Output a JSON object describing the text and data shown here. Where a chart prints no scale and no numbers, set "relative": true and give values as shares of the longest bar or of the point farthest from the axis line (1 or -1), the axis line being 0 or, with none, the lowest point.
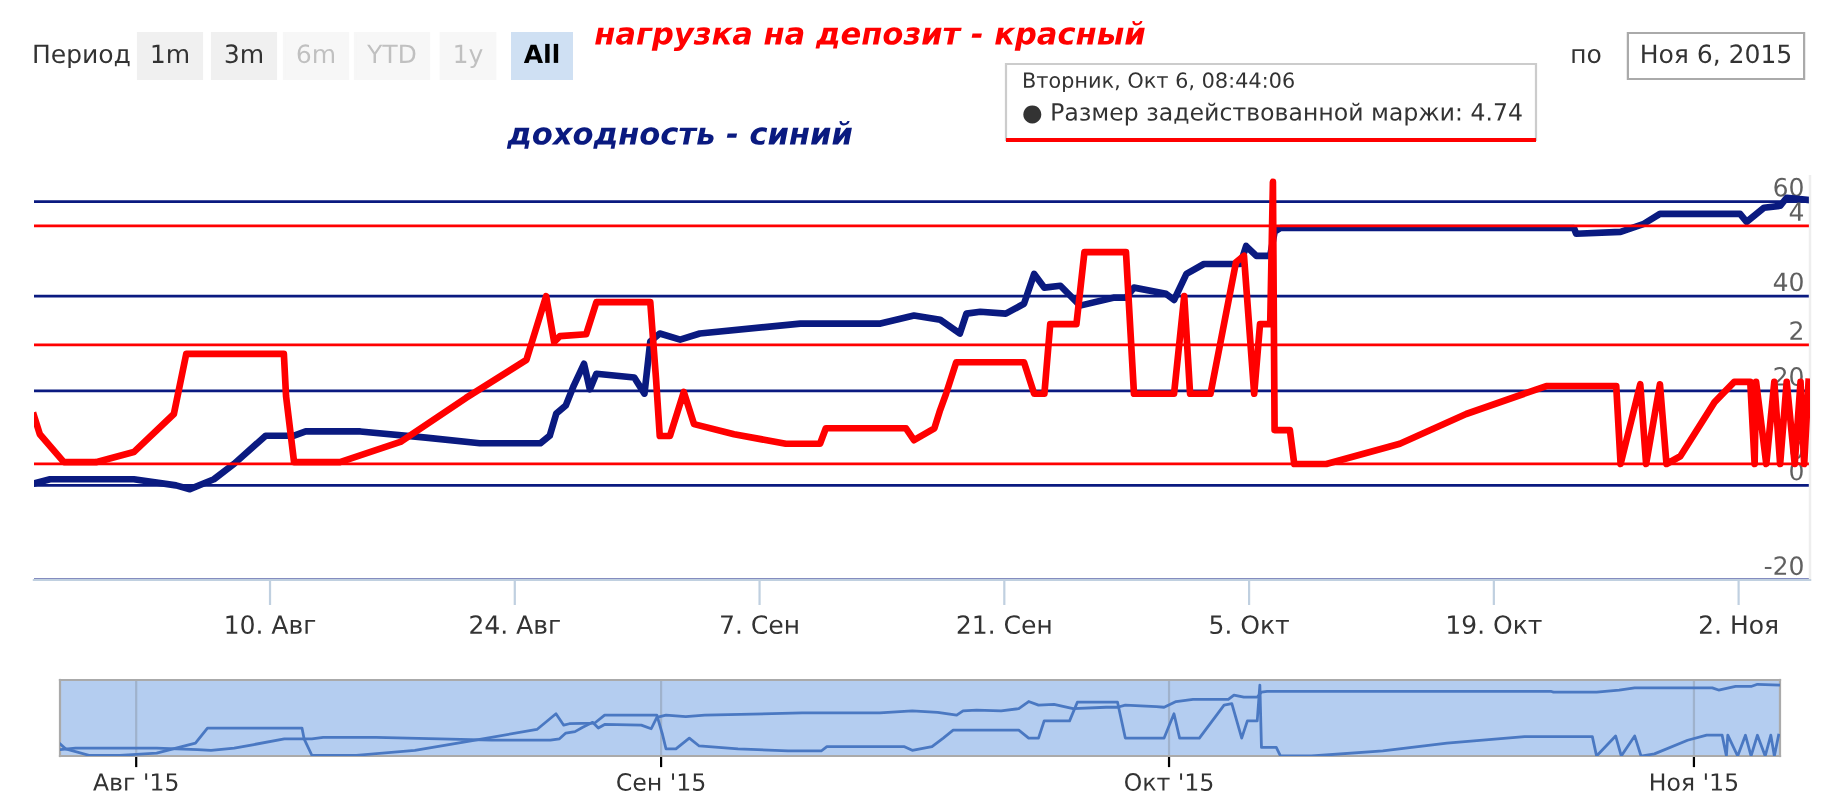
{
  "chart_data": [
    {
      "type": "line",
      "xlim": [
        "2015-07-27T12:00",
        "2015-11-06T02:00"
      ],
      "xticks": [
        {
          "value": "2015-08-10",
          "label": "10. Авг"
        },
        {
          "value": "2015-08-24",
          "label": "24. Авг"
        },
        {
          "value": "2015-09-07",
          "label": "7. Сен"
        },
        {
          "value": "2015-09-21",
          "label": "21. Сен"
        },
        {
          "value": "2015-10-05",
          "label": "5. Окт"
        },
        {
          "value": "2015-10-19",
          "label": "19. Окт"
        },
        {
          "value": "2015-11-02",
          "label": "2. Ноя"
        }
      ],
      "ylim": [
        -20,
        65.4
      ],
      "yticks": [
        -20,
        0,
        20,
        40,
        60
      ],
      "y2lim": [
        -1.95,
        4.84
      ],
      "y2ticks": [
        0,
        2,
        4
      ],
      "grid": "y",
      "legend": false,
      "annotations": [
        "Период",
        "1m",
        "3m",
        "6m",
        "YTD",
        "1y",
        "All",
        "по",
        "Ноя 6, 2015",
        "Вторник, Окт 6, 08:44:06",
        "● Размер задействованной маржи: 4.74"
      ],
      "series": [
        {
          "name": "доходность - синий",
          "color": "#0a1a80",
          "axis": "y",
          "x": [
            "2015-07-27T12:00",
            "2015-07-28T10:00",
            "2015-08-02T05:00",
            "2015-08-04T15:00",
            "2015-08-05T10:00",
            "2015-08-06T19:00",
            "2015-08-07T23:00",
            "2015-08-09T18:00",
            "2015-08-11T09:00",
            "2015-08-12T01:00",
            "2015-08-15T04:00",
            "2015-08-18T22:00",
            "2015-08-22T00:00",
            "2015-08-25T11:00",
            "2015-08-26T00:00",
            "2015-08-26T09:00",
            "2015-08-26T22:00",
            "2015-08-27T09:00",
            "2015-08-27T23:00",
            "2015-08-28T07:00",
            "2015-08-28T16:00",
            "2015-08-30T20:00",
            "2015-08-31T10:00",
            "2015-08-31T18:00",
            "2015-09-01T07:00",
            "2015-09-02T11:00",
            "2015-09-03T14:00",
            "2015-09-09T08:00",
            "2015-09-13T22:00",
            "2015-09-15T20:00",
            "2015-09-17T08:00",
            "2015-09-18T11:00",
            "2015-09-18T20:00",
            "2015-09-19T15:00",
            "2015-09-21T02:00",
            "2015-09-22T03:00",
            "2015-09-22T17:00",
            "2015-09-23T07:00",
            "2015-09-24T05:00",
            "2015-09-25T08:00",
            "2015-09-27T07:00",
            "2015-09-27T23:00",
            "2015-09-28T10:00",
            "2015-09-30T06:00",
            "2015-09-30T17:00",
            "2015-10-01T10:00",
            "2015-10-02T10:00",
            "2015-10-04T12:00",
            "2015-10-04T20:00",
            "2015-10-05T10:00",
            "2015-10-06T05:00",
            "2015-10-06T11:00",
            "2015-10-06T19:00",
            "2015-10-23T14:00",
            "2015-10-23T17:00",
            "2015-10-26T06:00",
            "2015-10-27T14:00",
            "2015-10-28T12:00",
            "2015-11-02T02:00",
            "2015-11-02T11:00",
            "2015-11-03T11:00",
            "2015-11-04T09:00",
            "2015-11-04T18:00",
            "2015-11-06T02:00"
          ],
          "values": [
            0.4,
            1.3,
            1.3,
            0,
            -0.8,
            1.3,
            4.6,
            10.5,
            10.5,
            11.4,
            11.4,
            10.1,
            8.9,
            8.9,
            10.5,
            15.2,
            16.9,
            21.1,
            25.7,
            20.3,
            23.6,
            22.8,
            19.4,
            30.4,
            32.1,
            30.8,
            32.1,
            34.2,
            34.2,
            35.9,
            35,
            32.1,
            36.3,
            36.7,
            36.3,
            38.4,
            44.7,
            41.8,
            42.2,
            38,
            39.7,
            39.7,
            41.8,
            40.5,
            39.2,
            44.7,
            46.8,
            46.8,
            50.6,
            48.5,
            48.5,
            53.6,
            54.4,
            54.4,
            53.2,
            53.6,
            55.3,
            57.4,
            57.4,
            55.7,
            58.7,
            59.1,
            60.8,
            60.3
          ]
        },
        {
          "name": "нагрузка на депозит - красный",
          "color": "#ff0000",
          "axis": "y2",
          "x": [
            "2015-07-27T12:00",
            "2015-07-27T20:00",
            "2015-07-29T05:00",
            "2015-07-31T01:00",
            "2015-08-02T05:00",
            "2015-08-04T12:00",
            "2015-08-05T05:00",
            "2015-08-10T19:00",
            "2015-08-10T22:00",
            "2015-08-11T09:00",
            "2015-08-14T00:00",
            "2015-08-17T11:00",
            "2015-08-21T05:00",
            "2015-08-24T16:00",
            "2015-08-25T19:00",
            "2015-08-26T06:00",
            "2015-08-26T14:00",
            "2015-08-28T02:00",
            "2015-08-28T16:00",
            "2015-08-31T18:00",
            "2015-09-01T02:00",
            "2015-09-01T07:00",
            "2015-09-01T21:00",
            "2015-09-02T16:00",
            "2015-09-03T06:00",
            "2015-09-05T13:00",
            "2015-09-08T12:00",
            "2015-09-10T11:00",
            "2015-09-10T19:00",
            "2015-09-15T09:00",
            "2015-09-15T20:00",
            "2015-09-17T00:00",
            "2015-09-17T08:00",
            "2015-09-17T16:00",
            "2015-09-18T06:00",
            "2015-09-22T03:00",
            "2015-09-22T17:00",
            "2015-09-23T07:00",
            "2015-09-23T15:00",
            "2015-09-25T03:00",
            "2015-09-25T14:00",
            "2015-09-27T23:00",
            "2015-09-28T10:00",
            "2015-09-30T17:00",
            "2015-10-01T07:00",
            "2015-10-01T15:00",
            "2015-10-02T19:00",
            "2015-10-04T06:00",
            "2015-10-04T17:00",
            "2015-10-05T07:00",
            "2015-10-05T15:00",
            "2015-10-06T05:00",
            "2015-10-06T08:44",
            "2015-10-06T11:00",
            "2015-10-07T08:00",
            "2015-10-07T14:00",
            "2015-10-09T10:00",
            "2015-10-13T15:00",
            "2015-10-17T10:00",
            "2015-10-22T00:00",
            "2015-10-26T00:00",
            "2015-10-26T06:00",
            "2015-10-27T09:00",
            "2015-10-27T17:00",
            "2015-10-28T12:00",
            "2015-10-28T21:00",
            "2015-10-29T16:00",
            "2015-10-31T15:00",
            "2015-11-01T18:00",
            "2015-11-02T16:00",
            "2015-11-02T22:00",
            "2015-11-03T00:00",
            "2015-11-03T14:00",
            "2015-11-04T01:00",
            "2015-11-04T09:00",
            "2015-11-04T18:00",
            "2015-11-05T05:00",
            "2015-11-05T13:00",
            "2015-11-05T18:00",
            "2015-11-06T00:00"
          ],
          "values": [
            0.81,
            0.5,
            0.03,
            0.03,
            0.2,
            0.84,
            1.85,
            1.85,
            1.14,
            0.03,
            0.03,
            0.37,
            1.11,
            1.75,
            2.82,
            2.05,
            2.15,
            2.18,
            2.72,
            2.72,
            1.41,
            0.47,
            0.47,
            1.21,
            0.67,
            0.5,
            0.34,
            0.34,
            0.6,
            0.6,
            0.4,
            0.6,
            0.91,
            1.18,
            1.71,
            1.71,
            1.18,
            1.18,
            2.35,
            2.35,
            3.56,
            3.56,
            1.18,
            1.18,
            2.82,
            1.18,
            1.18,
            3.39,
            3.5,
            1.18,
            2.35,
            2.35,
            4.74,
            0.57,
            0.57,
            0,
            0,
            0.34,
            0.84,
            1.31,
            1.31,
            0,
            1.34,
            0,
            1.34,
            0,
            0.13,
            1.04,
            1.38,
            1.38,
            0,
            1.38,
            0,
            1.38,
            0,
            1.38,
            0,
            1.38,
            0,
            1.38
          ]
        }
      ]
    },
    {
      "type": "line",
      "xlim": [
        "2015-07-27T12:00",
        "2015-11-06T02:00"
      ],
      "xticks": [
        {
          "value": "2015-08-01",
          "label": "Авг '15"
        },
        {
          "value": "2015-09-01",
          "label": "Сен '15"
        },
        {
          "value": "2015-10-01",
          "label": "Окт '15"
        },
        {
          "value": "2015-11-01",
          "label": "Ноя '15"
        }
      ],
      "relative": true,
      "grid": "x",
      "tick_labels": "x",
      "legend": false,
      "bands": [
        {
          "axis": "x",
          "from": "2015-07-27T12:00",
          "to": "2015-11-06T02:00",
          "color": "#b4cdf0"
        }
      ],
      "series": [
        {
          "color": "#4a78c2",
          "x": [
            "2015-07-27T12:00",
            "2015-07-28T10:00",
            "2015-08-02T05:00",
            "2015-08-04T15:00",
            "2015-08-05T10:00",
            "2015-08-06T19:00",
            "2015-08-07T23:00",
            "2015-08-09T18:00",
            "2015-08-11T09:00",
            "2015-08-12T01:00",
            "2015-08-15T04:00",
            "2015-08-18T22:00",
            "2015-08-22T00:00",
            "2015-08-25T11:00",
            "2015-08-26T00:00",
            "2015-08-26T09:00",
            "2015-08-26T22:00",
            "2015-08-27T09:00",
            "2015-08-27T23:00",
            "2015-08-28T07:00",
            "2015-08-28T16:00",
            "2015-08-30T20:00",
            "2015-08-31T10:00",
            "2015-08-31T18:00",
            "2015-09-01T07:00",
            "2015-09-02T11:00",
            "2015-09-03T14:00",
            "2015-09-09T08:00",
            "2015-09-13T22:00",
            "2015-09-15T20:00",
            "2015-09-17T08:00",
            "2015-09-18T11:00",
            "2015-09-18T20:00",
            "2015-09-19T15:00",
            "2015-09-21T02:00",
            "2015-09-22T03:00",
            "2015-09-22T17:00",
            "2015-09-23T07:00",
            "2015-09-24T05:00",
            "2015-09-25T08:00",
            "2015-09-27T07:00",
            "2015-09-27T23:00",
            "2015-09-28T10:00",
            "2015-09-30T06:00",
            "2015-09-30T17:00",
            "2015-10-01T10:00",
            "2015-10-02T10:00",
            "2015-10-04T12:00",
            "2015-10-04T20:00",
            "2015-10-05T10:00",
            "2015-10-06T05:00",
            "2015-10-06T11:00",
            "2015-10-06T19:00",
            "2015-10-23T14:00",
            "2015-10-23T17:00",
            "2015-10-26T06:00",
            "2015-10-27T14:00",
            "2015-10-28T12:00",
            "2015-11-02T02:00",
            "2015-11-02T11:00",
            "2015-11-03T11:00",
            "2015-11-04T09:00",
            "2015-11-04T18:00",
            "2015-11-06T02:00"
          ],
          "values": [
            0.09,
            0.11,
            0.11,
            0.09,
            0.08,
            0.11,
            0.16,
            0.24,
            0.24,
            0.26,
            0.26,
            0.24,
            0.22,
            0.22,
            0.24,
            0.32,
            0.34,
            0.4,
            0.47,
            0.39,
            0.44,
            0.43,
            0.38,
            0.54,
            0.57,
            0.55,
            0.57,
            0.6,
            0.6,
            0.63,
            0.61,
            0.57,
            0.63,
            0.64,
            0.63,
            0.66,
            0.76,
            0.71,
            0.72,
            0.66,
            0.68,
            0.68,
            0.71,
            0.69,
            0.68,
            0.76,
            0.79,
            0.79,
            0.85,
            0.82,
            0.82,
            0.89,
            0.9,
            0.9,
            0.89,
            0.89,
            0.92,
            0.95,
            0.95,
            0.92,
            0.97,
            0.97,
            1,
            0.99
          ]
        },
        {
          "color": "#4a78c2",
          "x": [
            "2015-07-27T12:00",
            "2015-07-27T20:00",
            "2015-07-29T05:00",
            "2015-07-31T01:00",
            "2015-08-02T05:00",
            "2015-08-04T12:00",
            "2015-08-05T05:00",
            "2015-08-10T19:00",
            "2015-08-10T22:00",
            "2015-08-11T09:00",
            "2015-08-14T00:00",
            "2015-08-17T11:00",
            "2015-08-21T05:00",
            "2015-08-24T16:00",
            "2015-08-25T19:00",
            "2015-08-26T06:00",
            "2015-08-26T14:00",
            "2015-08-28T02:00",
            "2015-08-28T16:00",
            "2015-08-31T18:00",
            "2015-09-01T02:00",
            "2015-09-01T07:00",
            "2015-09-01T21:00",
            "2015-09-02T16:00",
            "2015-09-03T06:00",
            "2015-09-05T13:00",
            "2015-09-08T12:00",
            "2015-09-10T11:00",
            "2015-09-10T19:00",
            "2015-09-15T09:00",
            "2015-09-15T20:00",
            "2015-09-17T00:00",
            "2015-09-17T08:00",
            "2015-09-17T16:00",
            "2015-09-18T06:00",
            "2015-09-22T03:00",
            "2015-09-22T17:00",
            "2015-09-23T07:00",
            "2015-09-23T15:00",
            "2015-09-25T03:00",
            "2015-09-25T14:00",
            "2015-09-27T23:00",
            "2015-09-28T10:00",
            "2015-09-30T17:00",
            "2015-10-01T07:00",
            "2015-10-01T15:00",
            "2015-10-02T19:00",
            "2015-10-04T06:00",
            "2015-10-04T17:00",
            "2015-10-05T07:00",
            "2015-10-05T15:00",
            "2015-10-06T05:00",
            "2015-10-06T08:44",
            "2015-10-06T11:00",
            "2015-10-07T08:00",
            "2015-10-07T14:00",
            "2015-10-09T10:00",
            "2015-10-13T15:00",
            "2015-10-17T10:00",
            "2015-10-22T00:00",
            "2015-10-26T00:00",
            "2015-10-26T06:00",
            "2015-10-27T09:00",
            "2015-10-27T17:00",
            "2015-10-28T12:00",
            "2015-10-28T21:00",
            "2015-10-29T16:00",
            "2015-10-31T15:00",
            "2015-11-01T18:00",
            "2015-11-02T16:00",
            "2015-11-02T22:00",
            "2015-11-03T00:00",
            "2015-11-03T14:00",
            "2015-11-04T01:00",
            "2015-11-04T09:00",
            "2015-11-04T18:00",
            "2015-11-05T05:00",
            "2015-11-05T13:00",
            "2015-11-05T18:00",
            "2015-11-06T00:00"
          ],
          "values": [
            0.17,
            0.1,
            0.01,
            0.01,
            0.04,
            0.18,
            0.39,
            0.39,
            0.24,
            0.01,
            0.01,
            0.08,
            0.23,
            0.37,
            0.59,
            0.43,
            0.45,
            0.46,
            0.57,
            0.57,
            0.3,
            0.1,
            0.1,
            0.25,
            0.14,
            0.1,
            0.07,
            0.07,
            0.13,
            0.13,
            0.08,
            0.13,
            0.19,
            0.25,
            0.36,
            0.36,
            0.25,
            0.25,
            0.49,
            0.49,
            0.75,
            0.75,
            0.25,
            0.25,
            0.59,
            0.25,
            0.25,
            0.71,
            0.73,
            0.25,
            0.49,
            0.49,
            0.99,
            0.12,
            0.12,
            0,
            0,
            0.07,
            0.18,
            0.27,
            0.27,
            0,
            0.28,
            0,
            0.28,
            0,
            0.03,
            0.22,
            0.29,
            0.29,
            0,
            0.29,
            0,
            0.29,
            0,
            0.29,
            0,
            0.29,
            0,
            0.29
          ]
        }
      ]
    }
  ]
}
